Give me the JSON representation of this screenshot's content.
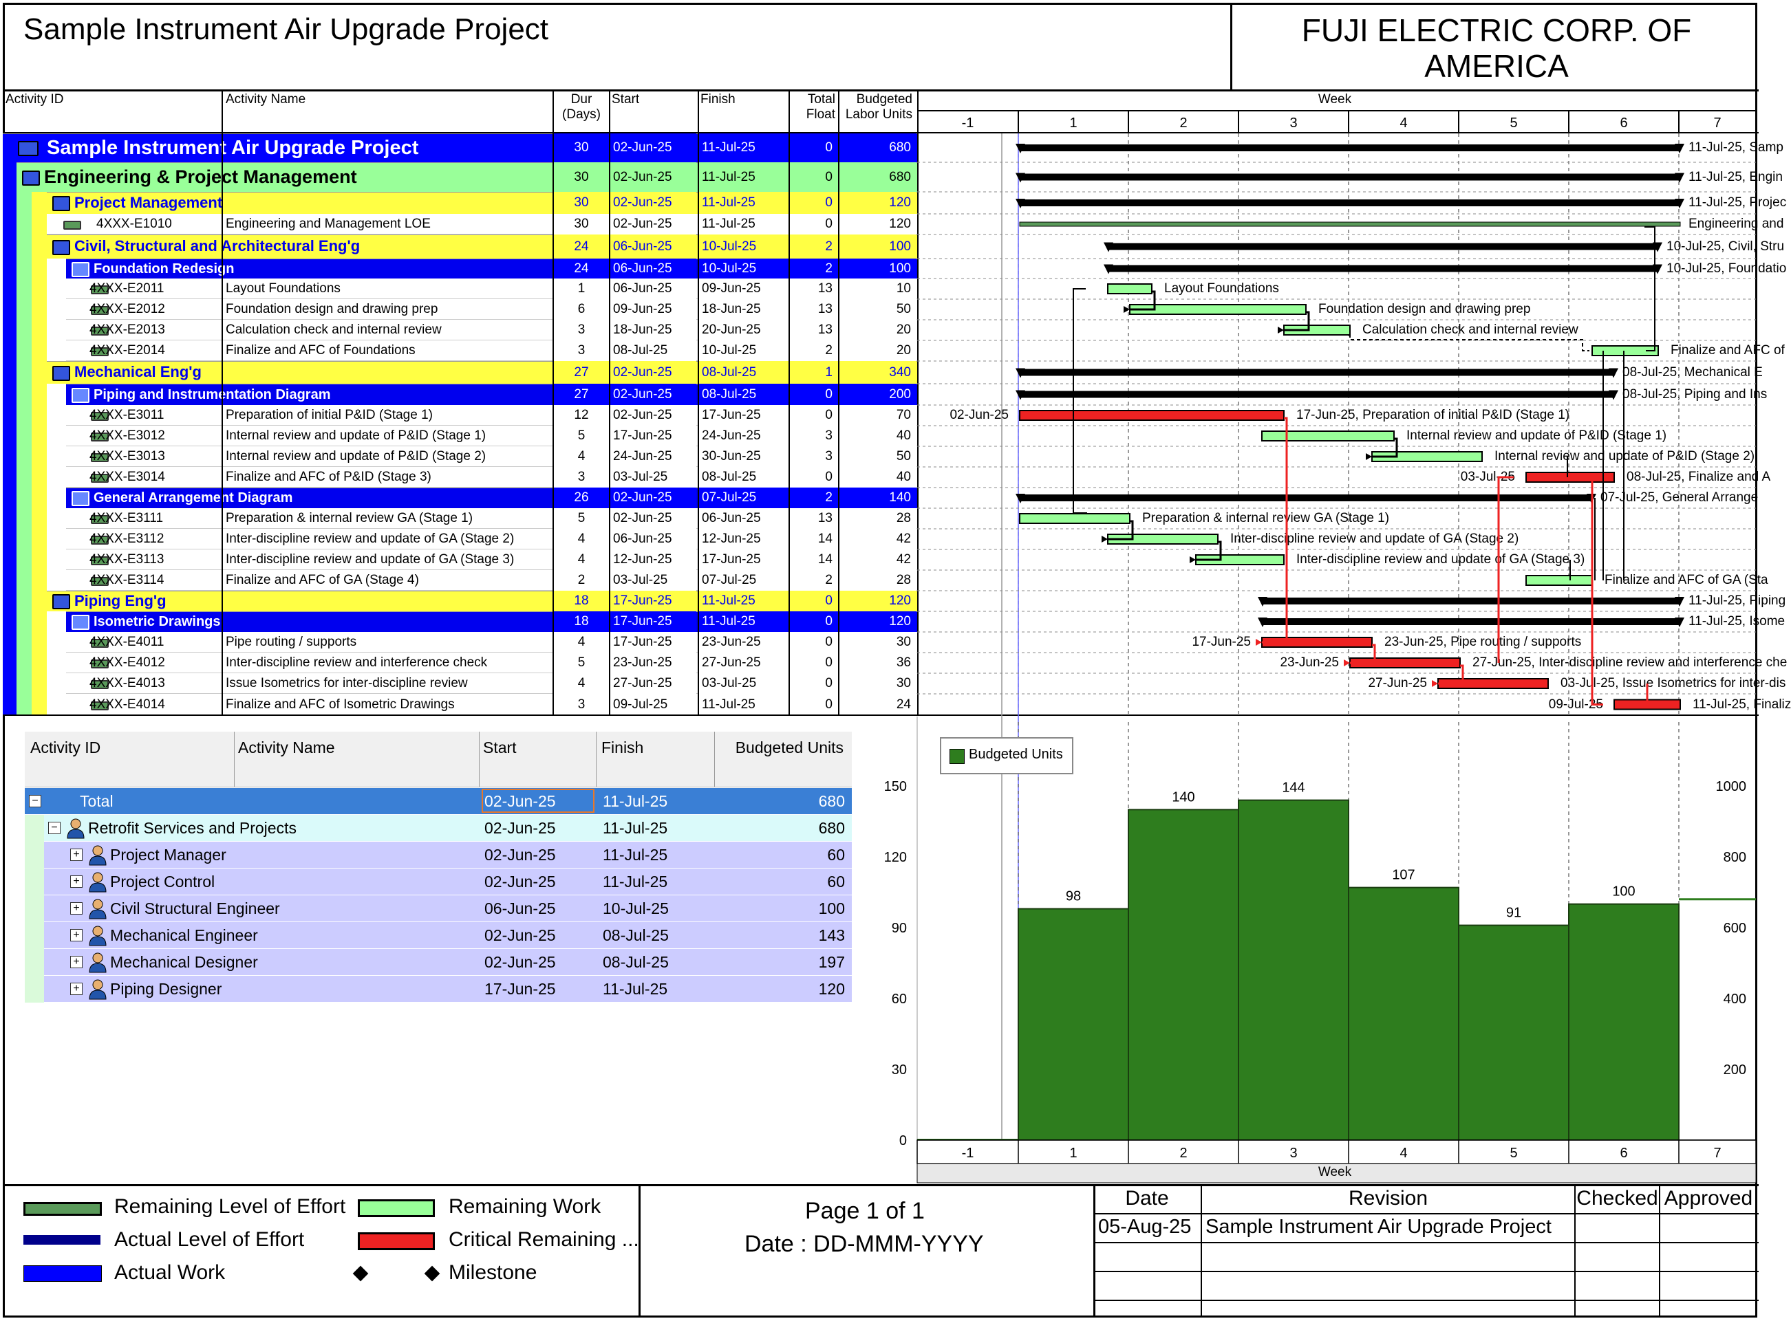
{
  "header": {
    "project_title": "Sample Instrument Air Upgrade Project",
    "company_line1": "FUJI ELECTRIC CORP. OF",
    "company_line2": "AMERICA"
  },
  "columns": {
    "activity_id": "Activity ID",
    "activity_name": "Activity Name",
    "dur_line1": "Dur",
    "dur_line2": "(Days)",
    "start": "Start",
    "finish": "Finish",
    "float_line1": "Total",
    "float_line2": "Float",
    "units_line1": "Budgeted",
    "units_line2": "Labor Units",
    "timescale": "Week"
  },
  "weeks": [
    "-1",
    "1",
    "2",
    "3",
    "4",
    "5",
    "6",
    "7"
  ],
  "colors": {
    "project_band": "#0000ff",
    "eng_band": "#99ff99",
    "wbs_yellow": "#ffff44",
    "wbs_blue": "#0000ee",
    "remaining_work": "#99ff99",
    "critical": "#ee2222",
    "histogram_bar": "#2e7d1e"
  },
  "activities": [
    {
      "level": "project",
      "id": "Sample Instrument Air Upgrade Project",
      "name": "",
      "dur": "30",
      "start": "02-Jun-25",
      "finish": "11-Jul-25",
      "float": "0",
      "units": "680",
      "bar_label": "11-Jul-25, Samp"
    },
    {
      "level": "eng",
      "id": "Engineering & Project Management",
      "name": "",
      "dur": "30",
      "start": "02-Jun-25",
      "finish": "11-Jul-25",
      "float": "0",
      "units": "680",
      "bar_label": "11-Jul-25, Engin"
    },
    {
      "level": "wbs-y",
      "id": "Project Management",
      "name": "",
      "dur": "30",
      "start": "02-Jun-25",
      "finish": "11-Jul-25",
      "float": "0",
      "units": "120",
      "bar_label": "11-Jul-25, Projec"
    },
    {
      "level": "task",
      "id": "4XXX-E1010",
      "name": "Engineering and Management LOE",
      "dur": "30",
      "start": "02-Jun-25",
      "finish": "11-Jul-25",
      "float": "0",
      "units": "120",
      "bar_label": "Engineering and"
    },
    {
      "level": "wbs-y",
      "id": "Civil, Structural and Architectural Eng'g",
      "name": "",
      "dur": "24",
      "start": "06-Jun-25",
      "finish": "10-Jul-25",
      "float": "2",
      "units": "100",
      "bar_label": "10-Jul-25, Civil, Stru"
    },
    {
      "level": "wbs-b",
      "id": "Foundation Redesign",
      "name": "",
      "dur": "24",
      "start": "06-Jun-25",
      "finish": "10-Jul-25",
      "float": "2",
      "units": "100",
      "bar_label": "10-Jul-25, Foundatio"
    },
    {
      "level": "task2",
      "id": "4XXX-E2011",
      "name": "Layout Foundations",
      "dur": "1",
      "start": "06-Jun-25",
      "finish": "09-Jun-25",
      "float": "13",
      "units": "10",
      "bar_label": "Layout Foundations"
    },
    {
      "level": "task2",
      "id": "4XXX-E2012",
      "name": "Foundation design and drawing prep",
      "dur": "6",
      "start": "09-Jun-25",
      "finish": "18-Jun-25",
      "float": "13",
      "units": "50",
      "bar_label": "Foundation design and drawing prep"
    },
    {
      "level": "task2",
      "id": "4XXX-E2013",
      "name": "Calculation check and internal review",
      "dur": "3",
      "start": "18-Jun-25",
      "finish": "20-Jun-25",
      "float": "13",
      "units": "20",
      "bar_label": "Calculation check and internal review"
    },
    {
      "level": "task2",
      "id": "4XXX-E2014",
      "name": "Finalize and AFC of Foundations",
      "dur": "3",
      "start": "08-Jul-25",
      "finish": "10-Jul-25",
      "float": "2",
      "units": "20",
      "bar_label": "Finalize and AFC of"
    },
    {
      "level": "wbs-y",
      "id": "Mechanical Eng'g",
      "name": "",
      "dur": "27",
      "start": "02-Jun-25",
      "finish": "08-Jul-25",
      "float": "1",
      "units": "340",
      "bar_label": "08-Jul-25, Mechanical E"
    },
    {
      "level": "wbs-b",
      "id": "Piping and Instrumentation Diagram",
      "name": "",
      "dur": "27",
      "start": "02-Jun-25",
      "finish": "08-Jul-25",
      "float": "0",
      "units": "200",
      "bar_label": "08-Jul-25, Piping and Ins"
    },
    {
      "level": "task2",
      "id": "4XXX-E3011",
      "name": "Preparation of initial P&ID (Stage 1)",
      "dur": "12",
      "start": "02-Jun-25",
      "finish": "17-Jun-25",
      "float": "0",
      "units": "70",
      "bar_label": "17-Jun-25, Preparation of initial P&ID (Stage 1)",
      "pre_label": "02-Jun-25"
    },
    {
      "level": "task2",
      "id": "4XXX-E3012",
      "name": "Internal review and update of P&ID (Stage 1)",
      "dur": "5",
      "start": "17-Jun-25",
      "finish": "24-Jun-25",
      "float": "3",
      "units": "40",
      "bar_label": "Internal review and update of P&ID (Stage 1)"
    },
    {
      "level": "task2",
      "id": "4XXX-E3013",
      "name": "Internal review and update of P&ID (Stage 2)",
      "dur": "4",
      "start": "24-Jun-25",
      "finish": "30-Jun-25",
      "float": "3",
      "units": "50",
      "bar_label": "Internal review and update of P&ID (Stage 2)"
    },
    {
      "level": "task2",
      "id": "4XXX-E3014",
      "name": "Finalize and AFC of P&ID (Stage 3)",
      "dur": "3",
      "start": "03-Jul-25",
      "finish": "08-Jul-25",
      "float": "0",
      "units": "40",
      "bar_label": "08-Jul-25, Finalize and A",
      "pre_label": "03-Jul-25"
    },
    {
      "level": "wbs-b",
      "id": "General Arrangement Diagram",
      "name": "",
      "dur": "26",
      "start": "02-Jun-25",
      "finish": "07-Jul-25",
      "float": "2",
      "units": "140",
      "bar_label": "07-Jul-25, General Arrange"
    },
    {
      "level": "task2",
      "id": "4XXX-E3111",
      "name": "Preparation & internal review GA (Stage 1)",
      "dur": "5",
      "start": "02-Jun-25",
      "finish": "06-Jun-25",
      "float": "13",
      "units": "28",
      "bar_label": "Preparation & internal review GA (Stage 1)"
    },
    {
      "level": "task2",
      "id": "4XXX-E3112",
      "name": "Inter-discipline review and update of GA (Stage 2)",
      "dur": "4",
      "start": "06-Jun-25",
      "finish": "12-Jun-25",
      "float": "14",
      "units": "42",
      "bar_label": "Inter-discipline review and update of GA (Stage 2)"
    },
    {
      "level": "task2",
      "id": "4XXX-E3113",
      "name": "Inter-discipline review and update of GA (Stage 3)",
      "dur": "4",
      "start": "12-Jun-25",
      "finish": "17-Jun-25",
      "float": "14",
      "units": "42",
      "bar_label": "Inter-discipline review and update of GA (Stage 3)"
    },
    {
      "level": "task2",
      "id": "4XXX-E3114",
      "name": "Finalize and AFC of GA (Stage 4)",
      "dur": "2",
      "start": "03-Jul-25",
      "finish": "07-Jul-25",
      "float": "2",
      "units": "28",
      "bar_label": "Finalize and AFC of GA (Sta"
    },
    {
      "level": "wbs-y",
      "id": "Piping Eng'g",
      "name": "",
      "dur": "18",
      "start": "17-Jun-25",
      "finish": "11-Jul-25",
      "float": "0",
      "units": "120",
      "bar_label": "11-Jul-25, Piping"
    },
    {
      "level": "wbs-b",
      "id": "Isometric Drawings",
      "name": "",
      "dur": "18",
      "start": "17-Jun-25",
      "finish": "11-Jul-25",
      "float": "0",
      "units": "120",
      "bar_label": "11-Jul-25, Isome"
    },
    {
      "level": "task2",
      "id": "4XXX-E4011",
      "name": "Pipe routing / supports",
      "dur": "4",
      "start": "17-Jun-25",
      "finish": "23-Jun-25",
      "float": "0",
      "units": "30",
      "bar_label": "23-Jun-25, Pipe routing / supports",
      "pre_label": "17-Jun-25"
    },
    {
      "level": "task2",
      "id": "4XXX-E4012",
      "name": "Inter-discipline review and interference check",
      "dur": "5",
      "start": "23-Jun-25",
      "finish": "27-Jun-25",
      "float": "0",
      "units": "36",
      "bar_label": "27-Jun-25, Inter-discipline review and interference che",
      "pre_label": "23-Jun-25"
    },
    {
      "level": "task2",
      "id": "4XXX-E4013",
      "name": "Issue Isometrics for inter-discipline review",
      "dur": "4",
      "start": "27-Jun-25",
      "finish": "03-Jul-25",
      "float": "0",
      "units": "30",
      "bar_label": "03-Jul-25, Issue Isometrics for inter-dis",
      "pre_label": "27-Jun-25"
    },
    {
      "level": "task2",
      "id": "4XXX-E4014",
      "name": "Finalize and AFC of Isometric Drawings",
      "dur": "3",
      "start": "09-Jul-25",
      "finish": "11-Jul-25",
      "float": "0",
      "units": "24",
      "bar_label": "11-Jul-25, Finaliz",
      "pre_label": "09-Jul-25"
    }
  ],
  "resource_table": {
    "headers": {
      "id": "Activity ID",
      "name": "Activity Name",
      "start": "Start",
      "finish": "Finish",
      "units": "Budgeted Units"
    },
    "rows": [
      {
        "kind": "total",
        "name": "Total",
        "start": "02-Jun-25",
        "finish": "11-Jul-25",
        "units": "680",
        "toggle": "−"
      },
      {
        "kind": "group",
        "name": "Retrofit Services and Projects",
        "start": "02-Jun-25",
        "finish": "11-Jul-25",
        "units": "680",
        "toggle": "−"
      },
      {
        "kind": "res",
        "name": "Project Manager",
        "start": "02-Jun-25",
        "finish": "11-Jul-25",
        "units": "60",
        "toggle": "+"
      },
      {
        "kind": "res",
        "name": "Project Control",
        "start": "02-Jun-25",
        "finish": "11-Jul-25",
        "units": "60",
        "toggle": "+"
      },
      {
        "kind": "res",
        "name": "Civil Structural Engineer",
        "start": "06-Jun-25",
        "finish": "10-Jul-25",
        "units": "100",
        "toggle": "+"
      },
      {
        "kind": "res",
        "name": "Mechanical Engineer",
        "start": "02-Jun-25",
        "finish": "08-Jul-25",
        "units": "143",
        "toggle": "+"
      },
      {
        "kind": "res",
        "name": "Mechanical Designer",
        "start": "02-Jun-25",
        "finish": "08-Jul-25",
        "units": "197",
        "toggle": "+"
      },
      {
        "kind": "res",
        "name": "Piping Designer",
        "start": "17-Jun-25",
        "finish": "11-Jul-25",
        "units": "120",
        "toggle": "+"
      }
    ]
  },
  "chart_data": {
    "type": "bar",
    "title": "",
    "legend": "Budgeted Units",
    "xlabel": "Week",
    "categories": [
      "-1",
      "1",
      "2",
      "3",
      "4",
      "5",
      "6",
      "7"
    ],
    "values": [
      0,
      98,
      140,
      144,
      107,
      91,
      100,
      0
    ],
    "data_labels": [
      "",
      "98",
      "140",
      "144",
      "107",
      "91",
      "100",
      ""
    ],
    "left_ticks": [
      "150",
      "120",
      "90",
      "60",
      "30",
      "0"
    ],
    "right_ticks": [
      "1000",
      "800",
      "600",
      "400",
      "200"
    ],
    "ylim": [
      0,
      150
    ],
    "ylim_right": [
      0,
      1000
    ],
    "cumulative_note": "cumulative line reaches about 680 at week 7",
    "grid": true
  },
  "legend": {
    "items": [
      "Remaining Level of Effort",
      "Actual Level of Effort",
      "Actual Work",
      "Remaining Work",
      "Critical Remaining ...",
      "Milestone"
    ]
  },
  "footer": {
    "page": "Page 1 of 1",
    "date_line": "Date : DD-MMM-YYYY",
    "rev_headers": {
      "date": "Date",
      "revision": "Revision",
      "checked": "Checked",
      "approved": "Approved"
    },
    "rev_row": {
      "date": "05-Aug-25",
      "revision": "Sample Instrument Air Upgrade Project"
    }
  }
}
